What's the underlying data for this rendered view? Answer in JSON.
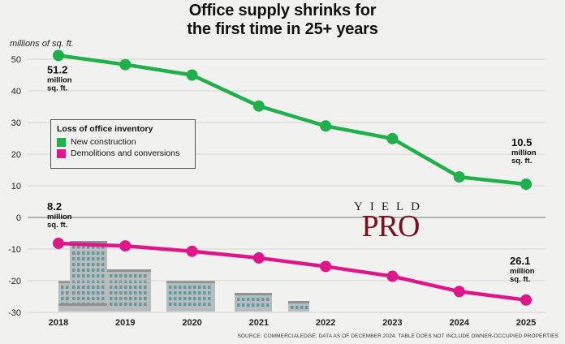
{
  "title_lines": [
    "Office supply shrinks for",
    "the first time in 25+ years"
  ],
  "watermark": {
    "top": "YIELD",
    "main": "PRO"
  },
  "source": "SOURCE: COMMERCIALEDGE; DATA AS OF DECEMBER 2024. TABLE DOES NOT INCLUDE OWNER-OCCUPIED PROPERTIES",
  "colors": {
    "green": "#1db04b",
    "magenta": "#e0158a"
  },
  "chart_data": {
    "type": "line",
    "ylabel": "millions of sq. ft.",
    "ylim": [
      -30,
      50
    ],
    "yticks": [
      "50",
      "40",
      "30",
      "20",
      "10",
      "0",
      "-10",
      "-20",
      "-30"
    ],
    "x": [
      "2018",
      "2019",
      "2020",
      "2021",
      "2022",
      "2023",
      "2024",
      "2025"
    ],
    "legend": {
      "title": "Loss of office inventory",
      "position": "left-middle"
    },
    "series": [
      {
        "name": "New construction",
        "color": "#1db04b",
        "values": [
          51.2,
          48.3,
          45.0,
          35.2,
          28.9,
          24.9,
          12.8,
          10.5
        ]
      },
      {
        "name": "Demolitions and conversions",
        "color": "#e0158a",
        "values": [
          -8.2,
          -9.0,
          -10.7,
          -12.8,
          -15.5,
          -18.6,
          -23.4,
          -26.1
        ]
      }
    ],
    "annotations": [
      {
        "series": 0,
        "index": 0,
        "value": "51.2",
        "lines": [
          "million",
          "sq. ft."
        ]
      },
      {
        "series": 0,
        "index": 7,
        "value": "10.5",
        "lines": [
          "million",
          "sq. ft."
        ]
      },
      {
        "series": 1,
        "index": 0,
        "value": "8.2",
        "lines": [
          "million",
          "sq. ft."
        ]
      },
      {
        "series": 1,
        "index": 7,
        "value": "26.1",
        "lines": [
          "million",
          "sq. ft."
        ]
      }
    ]
  }
}
